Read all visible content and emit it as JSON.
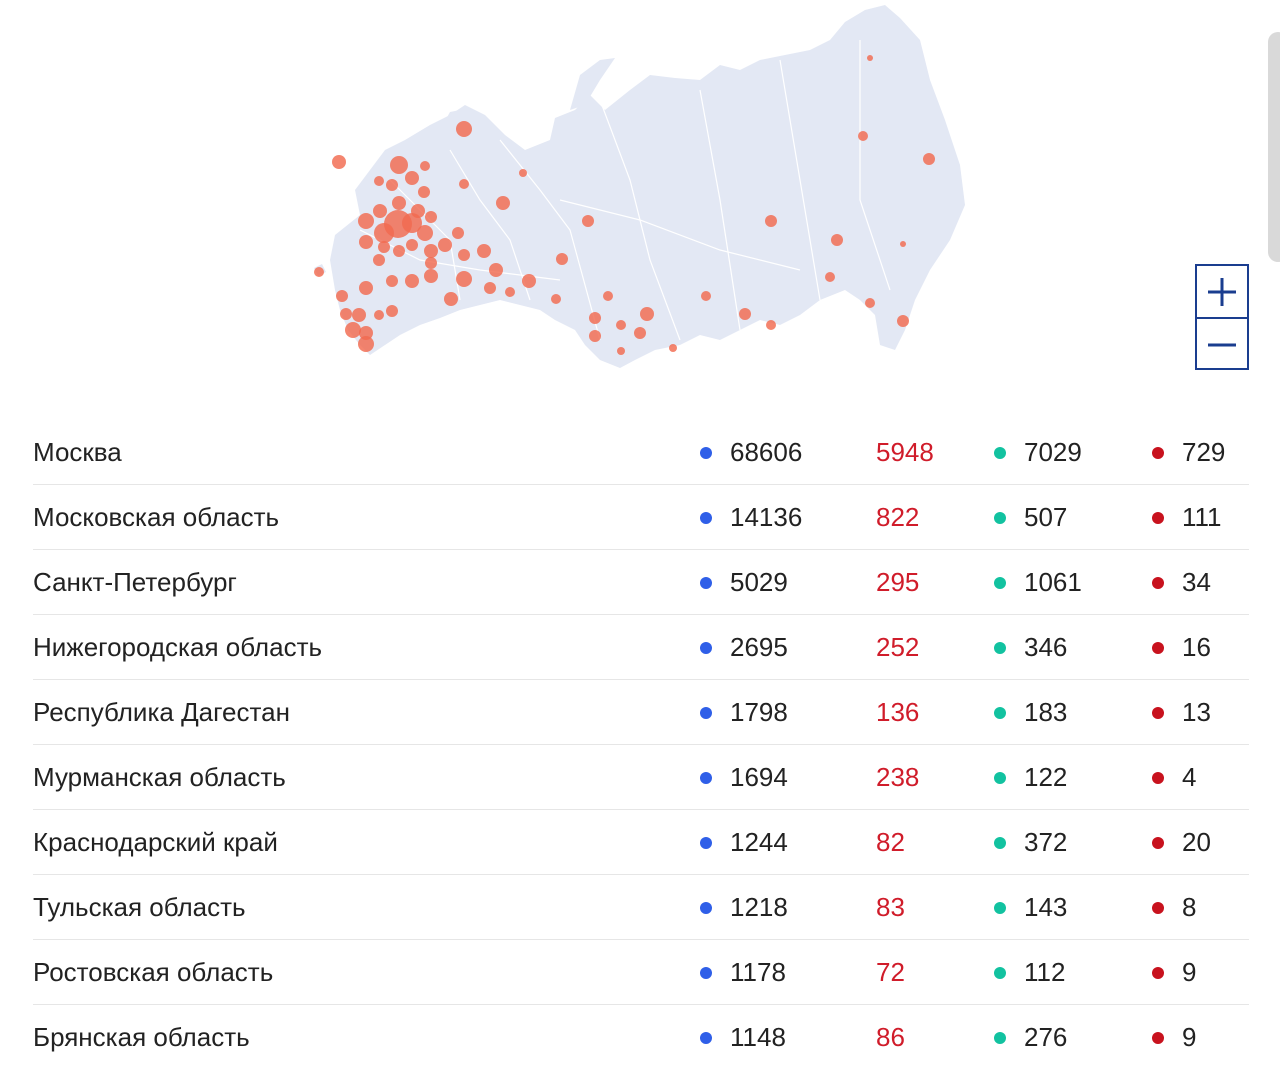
{
  "map": {
    "colors": {
      "land": "#e3e8f4",
      "border": "#ffffff",
      "marker": "#f26a4f"
    },
    "zoom_in_icon": "plus-icon",
    "zoom_out_icon": "minus-icon"
  },
  "legend_colors": {
    "confirmed": "#2f5fe8",
    "increase": "#d01c2a",
    "recovered": "#12c2a0",
    "deaths": "#c8121e"
  },
  "regions": [
    {
      "name": "Москва",
      "confirmed": "68606",
      "increase": "5948",
      "recovered": "7029",
      "deaths": "729"
    },
    {
      "name": "Московская область",
      "confirmed": "14136",
      "increase": "822",
      "recovered": "507",
      "deaths": "111"
    },
    {
      "name": "Санкт-Петербург",
      "confirmed": "5029",
      "increase": "295",
      "recovered": "1061",
      "deaths": "34"
    },
    {
      "name": "Нижегородская область",
      "confirmed": "2695",
      "increase": "252",
      "recovered": "346",
      "deaths": "16"
    },
    {
      "name": "Республика Дагестан",
      "confirmed": "1798",
      "increase": "136",
      "recovered": "183",
      "deaths": "13"
    },
    {
      "name": "Мурманская область",
      "confirmed": "1694",
      "increase": "238",
      "recovered": "122",
      "deaths": "4"
    },
    {
      "name": "Краснодарский край",
      "confirmed": "1244",
      "increase": "82",
      "recovered": "372",
      "deaths": "20"
    },
    {
      "name": "Тульская область",
      "confirmed": "1218",
      "increase": "83",
      "recovered": "143",
      "deaths": "8"
    },
    {
      "name": "Ростовская область",
      "confirmed": "1178",
      "increase": "72",
      "recovered": "112",
      "deaths": "9"
    },
    {
      "name": "Брянская область",
      "confirmed": "1148",
      "increase": "86",
      "recovered": "276",
      "deaths": "9"
    }
  ]
}
